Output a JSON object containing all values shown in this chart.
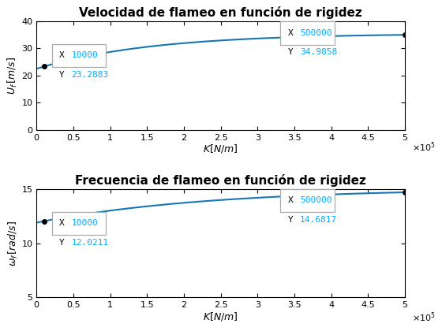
{
  "title1": "Velocidad de flameo en función de rigidez",
  "title2": "Frecuencia de flameo en función de rigidez",
  "xlabel": "$K[N/m]$",
  "ylabel1": "$U_f\\,[m/s]$",
  "ylabel2": "$\\omega_f\\,[rad/s]$",
  "xlim": [
    0,
    500000
  ],
  "ylim1": [
    0,
    40
  ],
  "ylim2": [
    5,
    15
  ],
  "xticks": [
    0,
    0.5,
    1.0,
    1.5,
    2.0,
    2.5,
    3.0,
    3.5,
    4.0,
    4.5,
    5.0
  ],
  "yticks1": [
    0,
    10,
    20,
    30,
    40
  ],
  "yticks2": [
    5,
    10,
    15
  ],
  "line_color": "#1777b4",
  "bg_color": "#ffffff",
  "ann_label_color": "#000000",
  "ann_value_color": "#00AAFF",
  "pt1_x": 10000,
  "pt1_y1": 23.2883,
  "pt1_y2": 12.0211,
  "pt2_x": 500000,
  "pt2_y1": 34.9858,
  "pt2_y2": 14.6817,
  "A1": 35.5,
  "A2": 15.05
}
